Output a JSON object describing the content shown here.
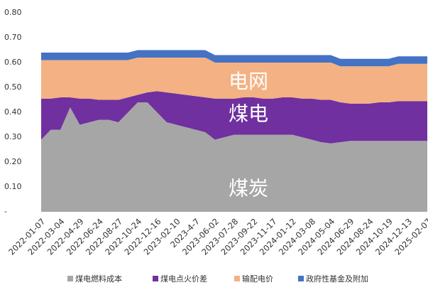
{
  "chart_data": {
    "type": "stacked-area",
    "categories": [
      "2022-01-07",
      null,
      "2022-03-04",
      null,
      "2022-04-29",
      null,
      "2022-06-24",
      null,
      "2022-08-27",
      null,
      "2022-10-24",
      null,
      "2022-12-16",
      null,
      "2023-02-10",
      null,
      "2023-4-7",
      null,
      "2023-06-02",
      null,
      "2023-07-28",
      null,
      "2023-09-22",
      null,
      "2023-11-17",
      null,
      "2024-01-12",
      null,
      "2024-03-08",
      null,
      "2024-05-04",
      null,
      "2024-06-29",
      null,
      "2024-08-24",
      null,
      "2024-10-19",
      null,
      "2024-12-13",
      null,
      "2025-02-07"
    ],
    "series": [
      {
        "name": "煤电燃料成本",
        "color": "#a6a6a6",
        "values": [
          0.29,
          0.33,
          0.33,
          0.42,
          0.35,
          0.36,
          0.37,
          0.37,
          0.36,
          0.4,
          0.44,
          0.44,
          0.4,
          0.36,
          0.35,
          0.34,
          0.33,
          0.32,
          0.29,
          0.3,
          0.31,
          0.31,
          0.31,
          0.31,
          0.31,
          0.31,
          0.31,
          0.3,
          0.29,
          0.28,
          0.275,
          0.28,
          0.285,
          0.285,
          0.285,
          0.285,
          0.285,
          0.285,
          0.285,
          0.285,
          0.285
        ]
      },
      {
        "name": "煤电点火价差",
        "color": "#7030a0",
        "values": [
          0.165,
          0.125,
          0.13,
          0.04,
          0.105,
          0.095,
          0.08,
          0.08,
          0.09,
          0.06,
          0.03,
          0.04,
          0.085,
          0.12,
          0.125,
          0.13,
          0.135,
          0.14,
          0.165,
          0.155,
          0.145,
          0.15,
          0.15,
          0.145,
          0.145,
          0.15,
          0.15,
          0.155,
          0.165,
          0.17,
          0.175,
          0.16,
          0.15,
          0.15,
          0.15,
          0.155,
          0.155,
          0.16,
          0.16,
          0.16,
          0.16
        ]
      },
      {
        "name": "输配电价",
        "color": "#f4b183",
        "values": [
          0.155,
          0.155,
          0.15,
          0.15,
          0.155,
          0.155,
          0.16,
          0.16,
          0.16,
          0.15,
          0.15,
          0.14,
          0.135,
          0.14,
          0.145,
          0.15,
          0.155,
          0.16,
          0.145,
          0.145,
          0.145,
          0.14,
          0.14,
          0.145,
          0.145,
          0.14,
          0.14,
          0.145,
          0.145,
          0.15,
          0.15,
          0.145,
          0.15,
          0.15,
          0.15,
          0.145,
          0.145,
          0.15,
          0.15,
          0.15,
          0.15
        ]
      },
      {
        "name": "政府性基金及附加",
        "color": "#4472c4",
        "values": [
          0.03,
          0.03,
          0.03,
          0.03,
          0.03,
          0.03,
          0.03,
          0.03,
          0.03,
          0.03,
          0.03,
          0.03,
          0.03,
          0.03,
          0.03,
          0.03,
          0.03,
          0.03,
          0.03,
          0.03,
          0.03,
          0.03,
          0.03,
          0.03,
          0.03,
          0.03,
          0.03,
          0.03,
          0.03,
          0.03,
          0.03,
          0.03,
          0.03,
          0.03,
          0.03,
          0.03,
          0.03,
          0.03,
          0.03,
          0.03,
          0.03
        ]
      }
    ],
    "ylim": [
      0,
      0.8
    ],
    "yticks": [
      {
        "value": 0,
        "label": "-"
      },
      {
        "value": 0.1,
        "label": "0.10"
      },
      {
        "value": 0.2,
        "label": "0.20"
      },
      {
        "value": 0.3,
        "label": "0.30"
      },
      {
        "value": 0.4,
        "label": "0.40"
      },
      {
        "value": 0.5,
        "label": "0.50"
      },
      {
        "value": 0.6,
        "label": "0.60"
      },
      {
        "value": 0.7,
        "label": "0.70"
      },
      {
        "value": 0.8,
        "label": "0.80"
      }
    ],
    "annotations": [
      "电网",
      "煤电",
      "煤炭"
    ],
    "grid": false,
    "legend": "bottom"
  }
}
